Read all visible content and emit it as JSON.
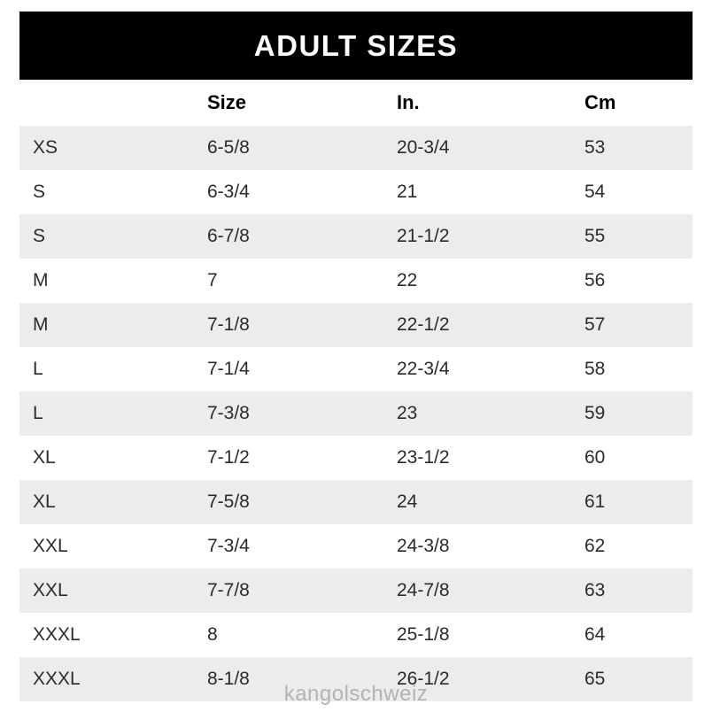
{
  "header": {
    "title": "ADULT SIZES",
    "bg_color": "#010101",
    "text_color": "#ffffff"
  },
  "table": {
    "columns": [
      "Size",
      "In.",
      "Cm"
    ],
    "stripe_color": "#ececec",
    "rows": [
      {
        "label": "XS",
        "size": "6-5/8",
        "inches": "20-3/4",
        "cm": "53"
      },
      {
        "label": "S",
        "size": "6-3/4",
        "inches": "21",
        "cm": "54"
      },
      {
        "label": "S",
        "size": "6-7/8",
        "inches": "21-1/2",
        "cm": "55"
      },
      {
        "label": "M",
        "size": "7",
        "inches": "22",
        "cm": "56"
      },
      {
        "label": "M",
        "size": "7-1/8",
        "inches": "22-1/2",
        "cm": "57"
      },
      {
        "label": "L",
        "size": "7-1/4",
        "inches": "22-3/4",
        "cm": "58"
      },
      {
        "label": "L",
        "size": "7-3/8",
        "inches": "23",
        "cm": "59"
      },
      {
        "label": "XL",
        "size": "7-1/2",
        "inches": "23-1/2",
        "cm": "60"
      },
      {
        "label": "XL",
        "size": "7-5/8",
        "inches": "24",
        "cm": "61"
      },
      {
        "label": "XXL",
        "size": "7-3/4",
        "inches": "24-3/8",
        "cm": "62"
      },
      {
        "label": "XXL",
        "size": "7-7/8",
        "inches": "24-7/8",
        "cm": "63"
      },
      {
        "label": "XXXL",
        "size": "8",
        "inches": "25-1/8",
        "cm": "64"
      },
      {
        "label": "XXXL",
        "size": "8-1/8",
        "inches": "26-1/2",
        "cm": "65"
      }
    ]
  },
  "watermark": {
    "text": "kangolschweiz",
    "color": "#b3b3b3"
  },
  "chart_data": {
    "type": "table",
    "title": "ADULT SIZES",
    "columns": [
      "",
      "Size",
      "In.",
      "Cm"
    ],
    "rows": [
      [
        "XS",
        "6-5/8",
        "20-3/4",
        "53"
      ],
      [
        "S",
        "6-3/4",
        "21",
        "54"
      ],
      [
        "S",
        "6-7/8",
        "21-1/2",
        "55"
      ],
      [
        "M",
        "7",
        "22",
        "56"
      ],
      [
        "M",
        "7-1/8",
        "22-1/2",
        "57"
      ],
      [
        "L",
        "7-1/4",
        "22-3/4",
        "58"
      ],
      [
        "L",
        "7-3/8",
        "23",
        "59"
      ],
      [
        "XL",
        "7-1/2",
        "23-1/2",
        "60"
      ],
      [
        "XL",
        "7-5/8",
        "24",
        "61"
      ],
      [
        "XXL",
        "7-3/4",
        "24-3/8",
        "62"
      ],
      [
        "XXL",
        "7-7/8",
        "24-7/8",
        "63"
      ],
      [
        "XXXL",
        "8",
        "25-1/8",
        "64"
      ],
      [
        "XXXL",
        "8-1/8",
        "26-1/2",
        "65"
      ]
    ],
    "layout": "striped rows, first data row shaded; watermark 'kangolschweiz' bottom center"
  }
}
